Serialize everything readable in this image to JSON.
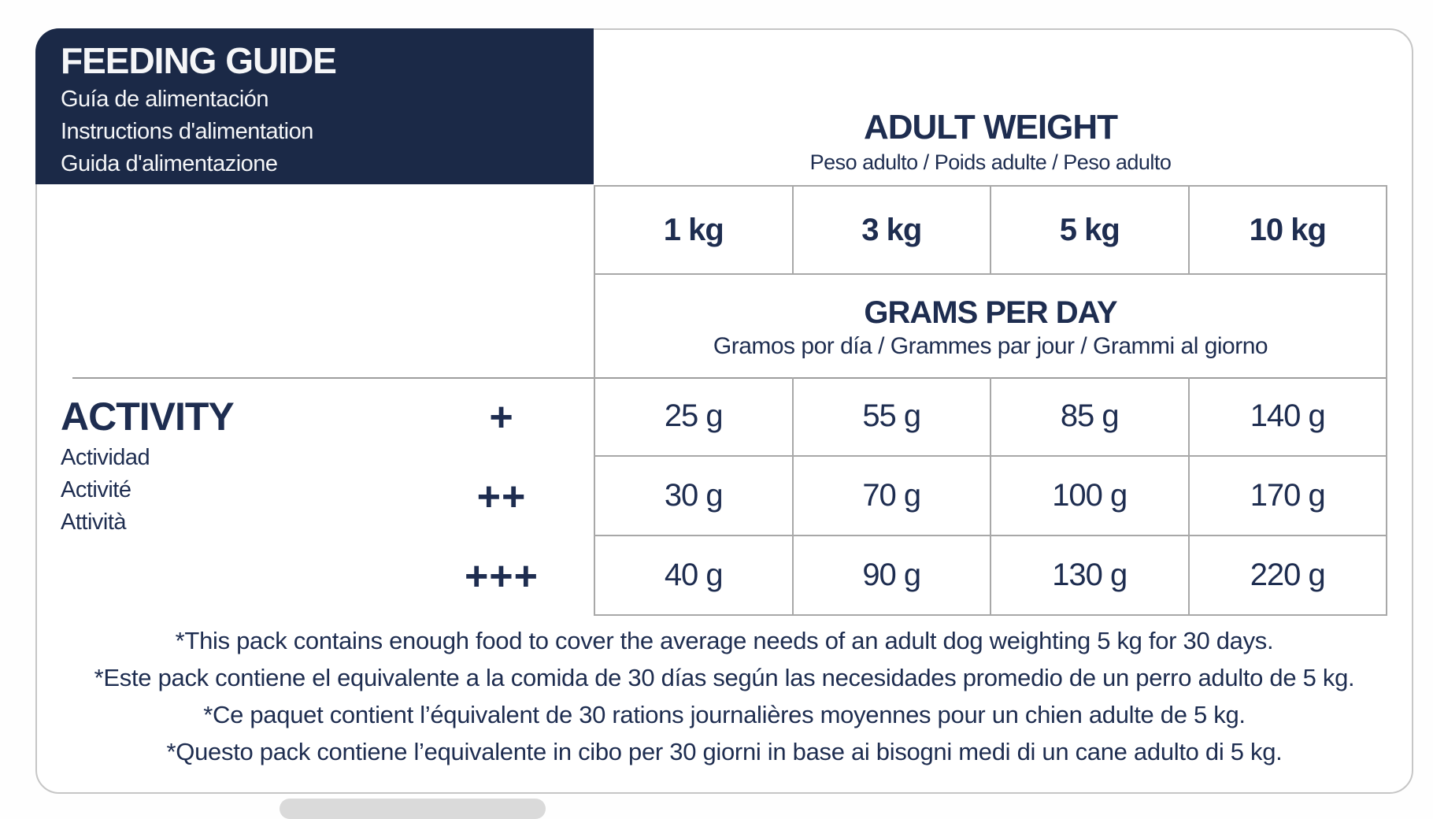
{
  "colors": {
    "navy": "#1b2947",
    "text_navy": "#1e2d50",
    "grid_border": "#a8a8a8",
    "card_border": "#c6c6c6"
  },
  "feeding_guide": {
    "title": "FEEDING GUIDE",
    "subtitles": [
      "Guía de alimentación",
      "Instructions d'alimentation",
      "Guida d'alimentazione"
    ]
  },
  "adult_weight": {
    "title": "ADULT WEIGHT",
    "subtitle": "Peso adulto / Poids adulte / Peso adulto"
  },
  "grams_per_day": {
    "title": "GRAMS PER DAY",
    "subtitle": "Gramos por día / Grammes par jour / Grammi al giorno"
  },
  "activity": {
    "title": "ACTIVITY",
    "subtitles": [
      "Actividad",
      "Activité",
      "Attività"
    ]
  },
  "table": {
    "weights": [
      "1 kg",
      "3 kg",
      "5 kg",
      "10 kg"
    ],
    "rows": [
      {
        "symbol": "+",
        "values": [
          "25 g",
          "55 g",
          "85 g",
          "140 g"
        ]
      },
      {
        "symbol": "++",
        "values": [
          "30 g",
          "70 g",
          "100 g",
          "170 g"
        ]
      },
      {
        "symbol": "+++",
        "values": [
          "40 g",
          "90 g",
          "130 g",
          "220 g"
        ]
      }
    ]
  },
  "footnotes": [
    "*This pack contains enough food to cover the average needs of an adult dog weighting 5 kg for 30 days.",
    "*Este pack contiene el equivalente a la comida de 30 días según las necesidades promedio de un perro adulto de 5 kg.",
    "*Ce paquet contient l’équivalent de 30 rations journalières moyennes pour un chien adulte de 5 kg.",
    "*Questo pack contiene l’equivalente in cibo per 30 giorni in base ai bisogni medi di un cane adulto di 5 kg."
  ],
  "chart_data": {
    "type": "table",
    "title": "FEEDING GUIDE — GRAMS PER DAY by ADULT WEIGHT and ACTIVITY",
    "columns": [
      "1 kg",
      "3 kg",
      "5 kg",
      "10 kg"
    ],
    "rows": [
      {
        "activity": "+",
        "grams_per_day": [
          25,
          55,
          85,
          140
        ]
      },
      {
        "activity": "++",
        "grams_per_day": [
          30,
          70,
          100,
          170
        ]
      },
      {
        "activity": "+++",
        "grams_per_day": [
          40,
          90,
          130,
          220
        ]
      }
    ],
    "units": "g"
  }
}
